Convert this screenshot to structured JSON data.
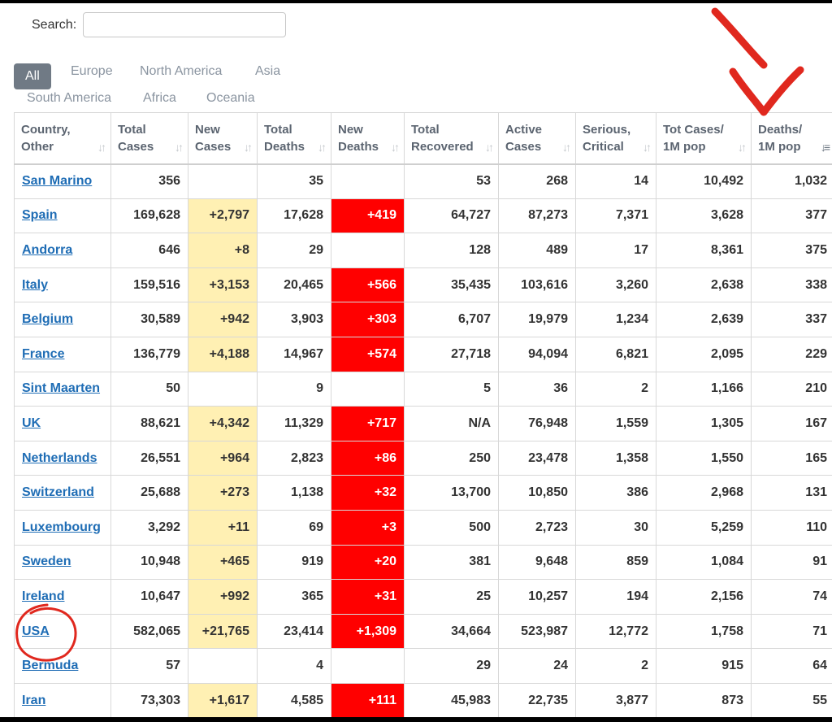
{
  "search": {
    "label": "Search:",
    "value": ""
  },
  "tabs": [
    {
      "label": "All",
      "active": true
    },
    {
      "label": "Europe",
      "active": false
    },
    {
      "label": "North America",
      "active": false
    },
    {
      "label": "Asia",
      "active": false
    },
    {
      "label": "South America",
      "active": false
    },
    {
      "label": "Africa",
      "active": false
    },
    {
      "label": "Oceania",
      "active": false
    }
  ],
  "columns": [
    {
      "label": "Country,\nOther",
      "sort_icon": "sort-icon"
    },
    {
      "label": "Total\nCases",
      "sort_icon": "sort-icon"
    },
    {
      "label": "New\nCases",
      "sort_icon": "sort-icon"
    },
    {
      "label": "Total\nDeaths",
      "sort_icon": "sort-icon"
    },
    {
      "label": "New\nDeaths",
      "sort_icon": "sort-icon"
    },
    {
      "label": "Total\nRecovered",
      "sort_icon": "sort-icon"
    },
    {
      "label": "Active\nCases",
      "sort_icon": "sort-icon"
    },
    {
      "label": "Serious,\nCritical",
      "sort_icon": "sort-icon"
    },
    {
      "label": "Tot Cases/\n1M pop",
      "sort_icon": "sort-icon"
    },
    {
      "label": "Deaths/\n1M pop",
      "sort_icon": "sort-desc-icon",
      "sorted": true
    }
  ],
  "rows": [
    [
      "San Marino",
      "356",
      "",
      "35",
      "",
      "53",
      "268",
      "14",
      "10,492",
      "1,032"
    ],
    [
      "Spain",
      "169,628",
      "+2,797",
      "17,628",
      "+419",
      "64,727",
      "87,273",
      "7,371",
      "3,628",
      "377"
    ],
    [
      "Andorra",
      "646",
      "+8",
      "29",
      "",
      "128",
      "489",
      "17",
      "8,361",
      "375"
    ],
    [
      "Italy",
      "159,516",
      "+3,153",
      "20,465",
      "+566",
      "35,435",
      "103,616",
      "3,260",
      "2,638",
      "338"
    ],
    [
      "Belgium",
      "30,589",
      "+942",
      "3,903",
      "+303",
      "6,707",
      "19,979",
      "1,234",
      "2,639",
      "337"
    ],
    [
      "France",
      "136,779",
      "+4,188",
      "14,967",
      "+574",
      "27,718",
      "94,094",
      "6,821",
      "2,095",
      "229"
    ],
    [
      "Sint Maarten",
      "50",
      "",
      "9",
      "",
      "5",
      "36",
      "2",
      "1,166",
      "210"
    ],
    [
      "UK",
      "88,621",
      "+4,342",
      "11,329",
      "+717",
      "N/A",
      "76,948",
      "1,559",
      "1,305",
      "167"
    ],
    [
      "Netherlands",
      "26,551",
      "+964",
      "2,823",
      "+86",
      "250",
      "23,478",
      "1,358",
      "1,550",
      "165"
    ],
    [
      "Switzerland",
      "25,688",
      "+273",
      "1,138",
      "+32",
      "13,700",
      "10,850",
      "386",
      "2,968",
      "131"
    ],
    [
      "Luxembourg",
      "3,292",
      "+11",
      "69",
      "+3",
      "500",
      "2,723",
      "30",
      "5,259",
      "110"
    ],
    [
      "Sweden",
      "10,948",
      "+465",
      "919",
      "+20",
      "381",
      "9,648",
      "859",
      "1,084",
      "91"
    ],
    [
      "Ireland",
      "10,647",
      "+992",
      "365",
      "+31",
      "25",
      "10,257",
      "194",
      "2,156",
      "74"
    ],
    [
      "USA",
      "582,065",
      "+21,765",
      "23,414",
      "+1,309",
      "34,664",
      "523,987",
      "12,772",
      "1,758",
      "71"
    ],
    [
      "Bermuda",
      "57",
      "",
      "4",
      "",
      "29",
      "24",
      "2",
      "915",
      "64"
    ],
    [
      "Iran",
      "73,303",
      "+1,617",
      "4,585",
      "+111",
      "45,983",
      "22,735",
      "3,877",
      "873",
      "55"
    ]
  ],
  "colors": {
    "new_cases_bg": "#fff0b3",
    "new_deaths_bg": "#ff0000",
    "link": "#1f6db5",
    "annotation": "#e0281e",
    "active_tab": "#707a85"
  },
  "annotations": [
    "arrow-annotation",
    "circle-annotation"
  ]
}
